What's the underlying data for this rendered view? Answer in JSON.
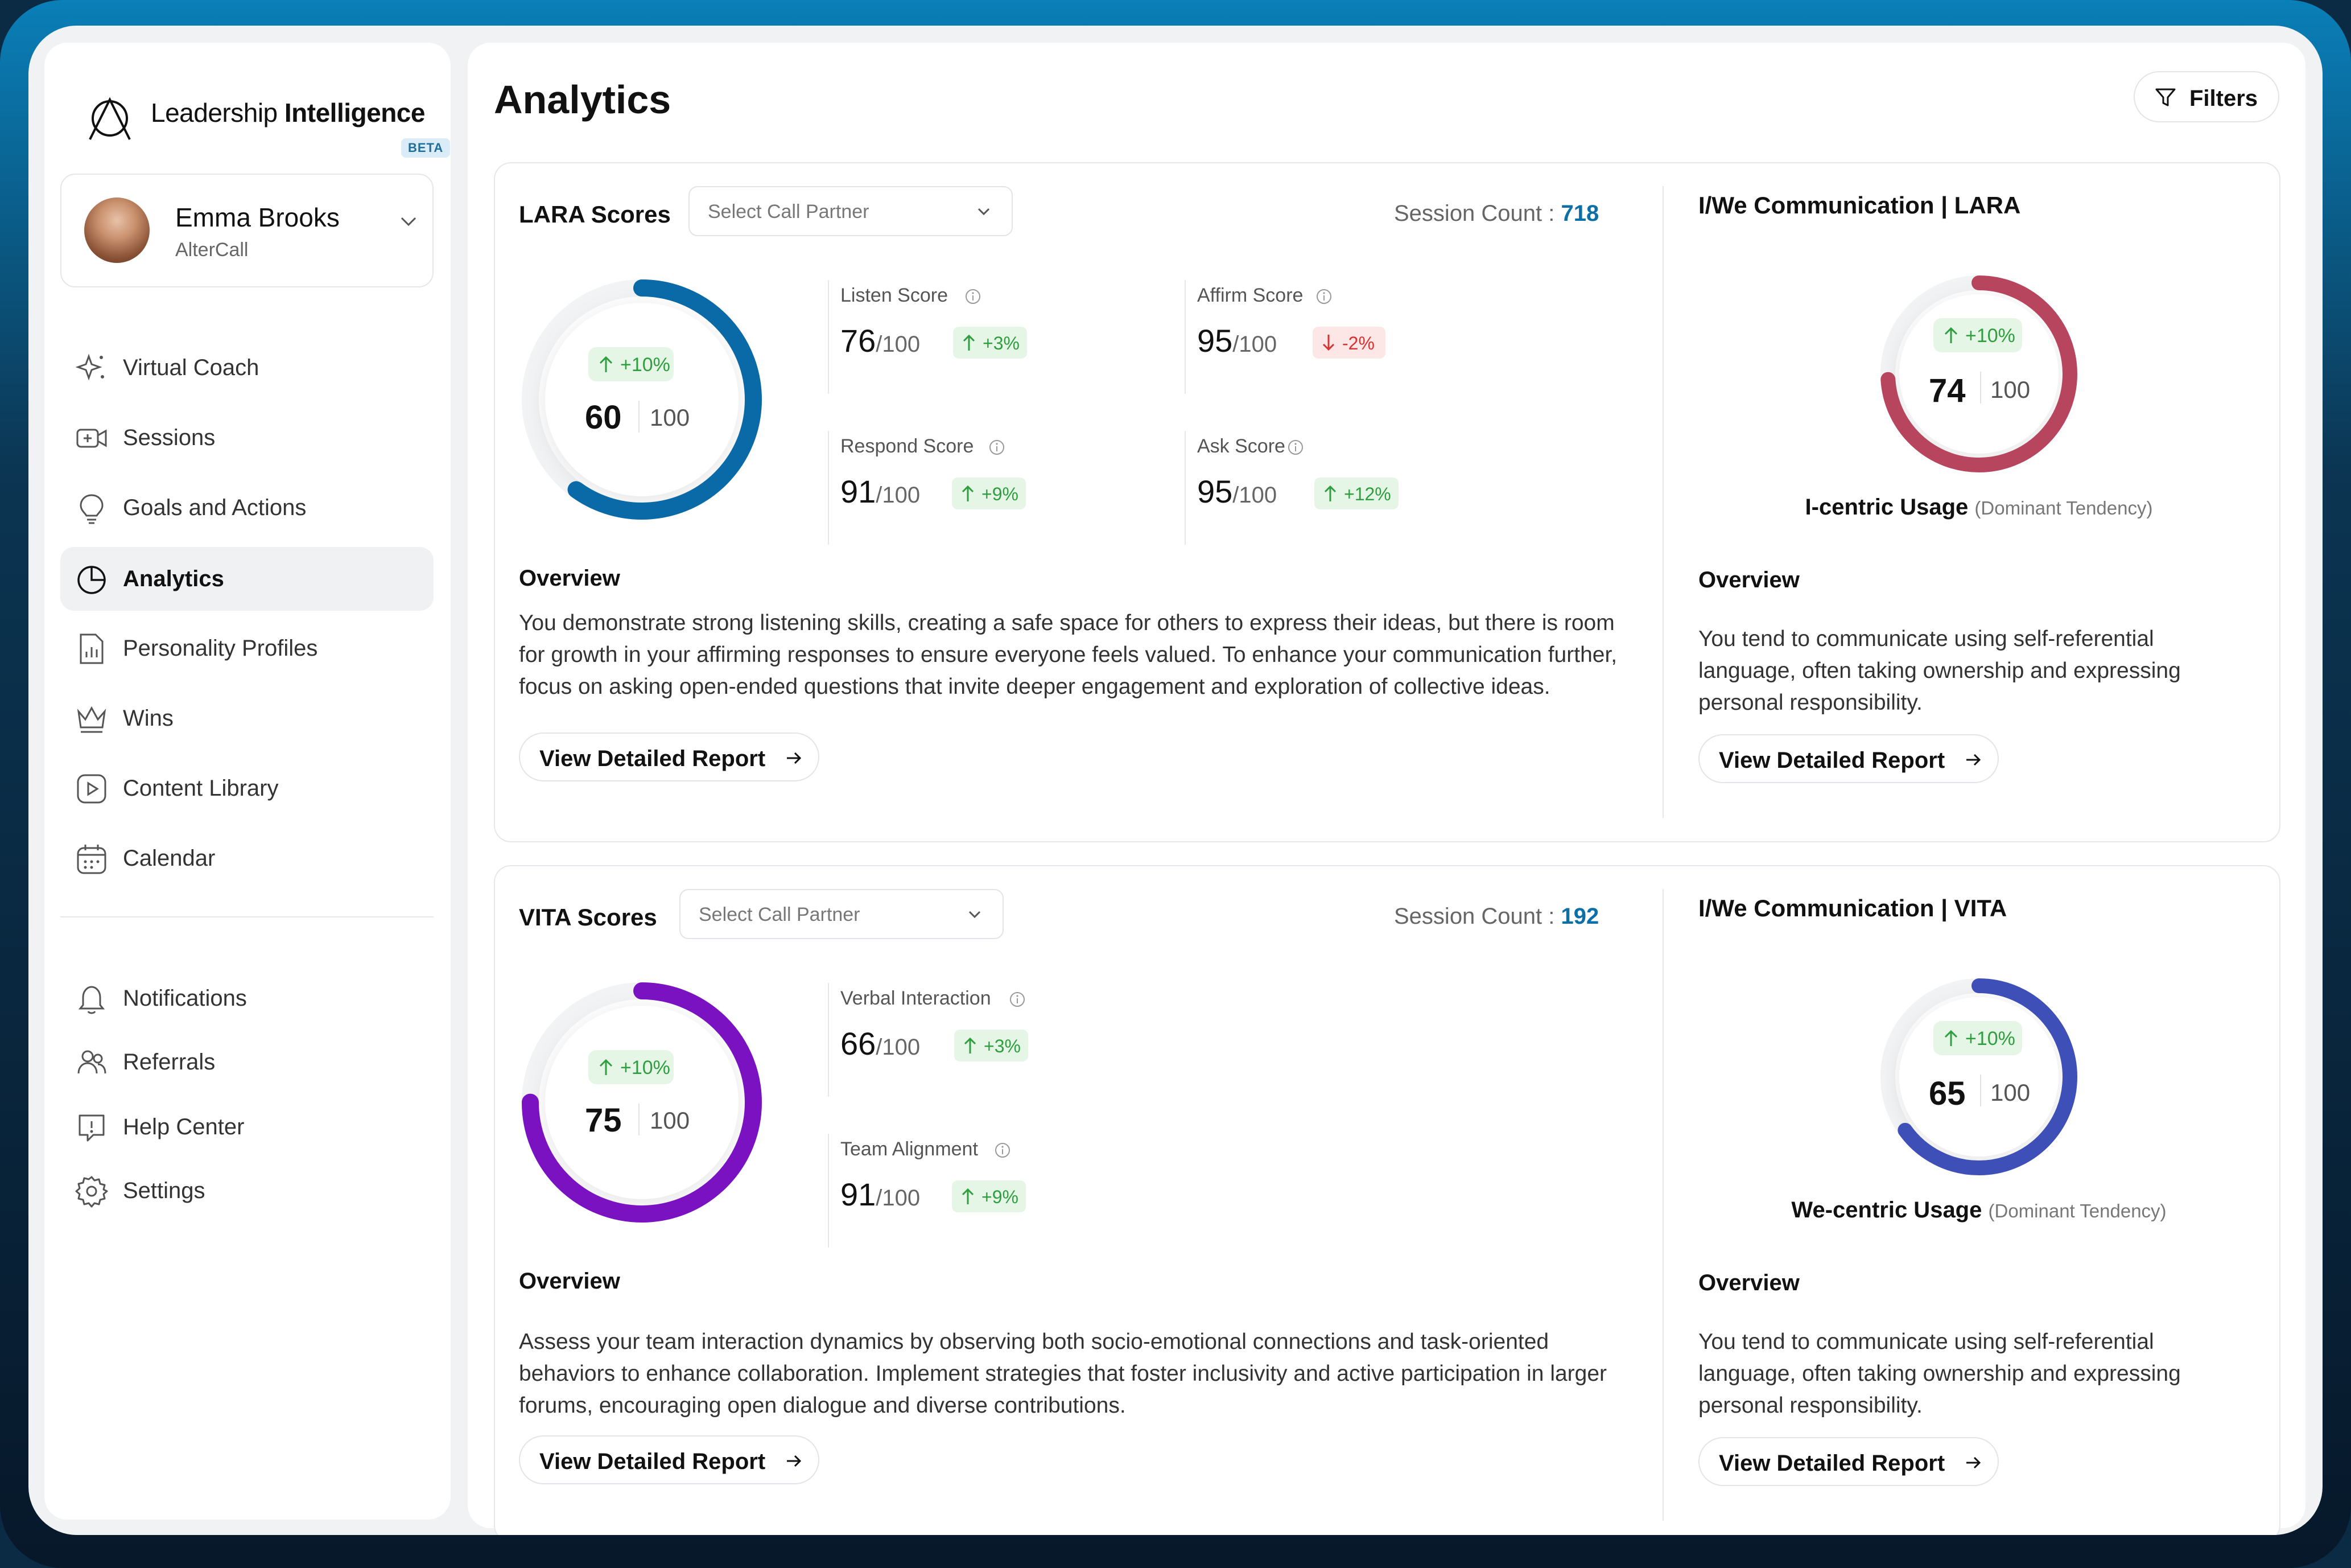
{
  "brand": {
    "name_light": "Leadership ",
    "name_bold": "Intelligence",
    "badge": "BETA"
  },
  "user": {
    "name": "Emma Brooks",
    "org": "AlterCall"
  },
  "nav": {
    "primary": [
      {
        "label": "Virtual Coach",
        "icon": "sparkle-icon"
      },
      {
        "label": "Sessions",
        "icon": "video-plus-icon"
      },
      {
        "label": "Goals and Actions",
        "icon": "lightbulb-icon"
      },
      {
        "label": "Analytics",
        "icon": "pie-chart-icon",
        "active": true
      },
      {
        "label": "Personality Profiles",
        "icon": "document-chart-icon"
      },
      {
        "label": "Wins",
        "icon": "crown-icon"
      },
      {
        "label": "Content Library",
        "icon": "play-circle-icon"
      },
      {
        "label": "Calendar",
        "icon": "calendar-icon"
      }
    ],
    "secondary": [
      {
        "label": "Notifications",
        "icon": "bell-icon"
      },
      {
        "label": "Referrals",
        "icon": "users-icon"
      },
      {
        "label": "Help Center",
        "icon": "help-icon"
      },
      {
        "label": "Settings",
        "icon": "gear-icon"
      }
    ]
  },
  "header": {
    "title": "Analytics",
    "filters_label": "Filters"
  },
  "lara": {
    "title": "LARA Scores",
    "select_placeholder": "Select Call Partner",
    "session_label": "Session Count : ",
    "session_count": "718",
    "gauge": {
      "value": 60,
      "max": 100,
      "value_text": "60",
      "max_text": "100",
      "change": "+10%",
      "color": "#0a6aa8"
    },
    "metrics": [
      {
        "label": "Listen Score",
        "value": "76",
        "max": "/100",
        "change": "+3%",
        "dir": "up"
      },
      {
        "label": "Affirm Score",
        "value": "95",
        "max": "/100",
        "change": "-2%",
        "dir": "down"
      },
      {
        "label": "Respond Score",
        "value": "91",
        "max": "/100",
        "change": "+9%",
        "dir": "up"
      },
      {
        "label": "Ask Score",
        "value": "95",
        "max": "/100",
        "change": "+12%",
        "dir": "up"
      }
    ],
    "overview_title": "Overview",
    "overview_text": "You demonstrate strong listening skills, creating a safe space for others to express their ideas, but there is room for growth in your affirming responses to ensure everyone feels valued. To enhance your communication further, focus on asking open-ended questions that invite deeper engagement and exploration of collective ideas.",
    "report_label": "View Detailed Report"
  },
  "lara_iwe": {
    "title": "I/We Communication | LARA",
    "gauge": {
      "value": 74,
      "max": 100,
      "value_text": "74",
      "max_text": "100",
      "change": "+10%",
      "color": "#b8455e"
    },
    "usage_label": "I-centric Usage",
    "usage_note": "(Dominant Tendency)",
    "overview_title": "Overview",
    "overview_text": "You tend to communicate using self-referential language, often taking ownership and expressing personal responsibility.",
    "report_label": "View Detailed Report"
  },
  "vita": {
    "title": "VITA Scores",
    "select_placeholder": "Select Call Partner",
    "session_label": "Session Count : ",
    "session_count": "192",
    "gauge": {
      "value": 75,
      "max": 100,
      "value_text": "75",
      "max_text": "100",
      "change": "+10%",
      "color": "#7a12c2"
    },
    "metrics": [
      {
        "label": "Verbal Interaction",
        "value": "66",
        "max": "/100",
        "change": "+3%",
        "dir": "up"
      },
      {
        "label": "Team Alignment",
        "value": "91",
        "max": "/100",
        "change": "+9%",
        "dir": "up"
      }
    ],
    "overview_title": "Overview",
    "overview_text": "Assess your team interaction dynamics by observing both socio-emotional connections and task-oriented behaviors to enhance collaboration. Implement strategies that foster inclusivity and active participation in larger forums, encouraging open dialogue and diverse contributions.",
    "report_label": "View Detailed Report"
  },
  "vita_iwe": {
    "title": "I/We Communication | VITA",
    "gauge": {
      "value": 65,
      "max": 100,
      "value_text": "65",
      "max_text": "100",
      "change": "+10%",
      "color": "#3f4fb8"
    },
    "usage_label": "We-centric Usage",
    "usage_note": "(Dominant Tendency)",
    "overview_title": "Overview",
    "overview_text": "You tend to communicate using self-referential language, often taking ownership and expressing personal responsibility.",
    "report_label": "View Detailed Report"
  }
}
